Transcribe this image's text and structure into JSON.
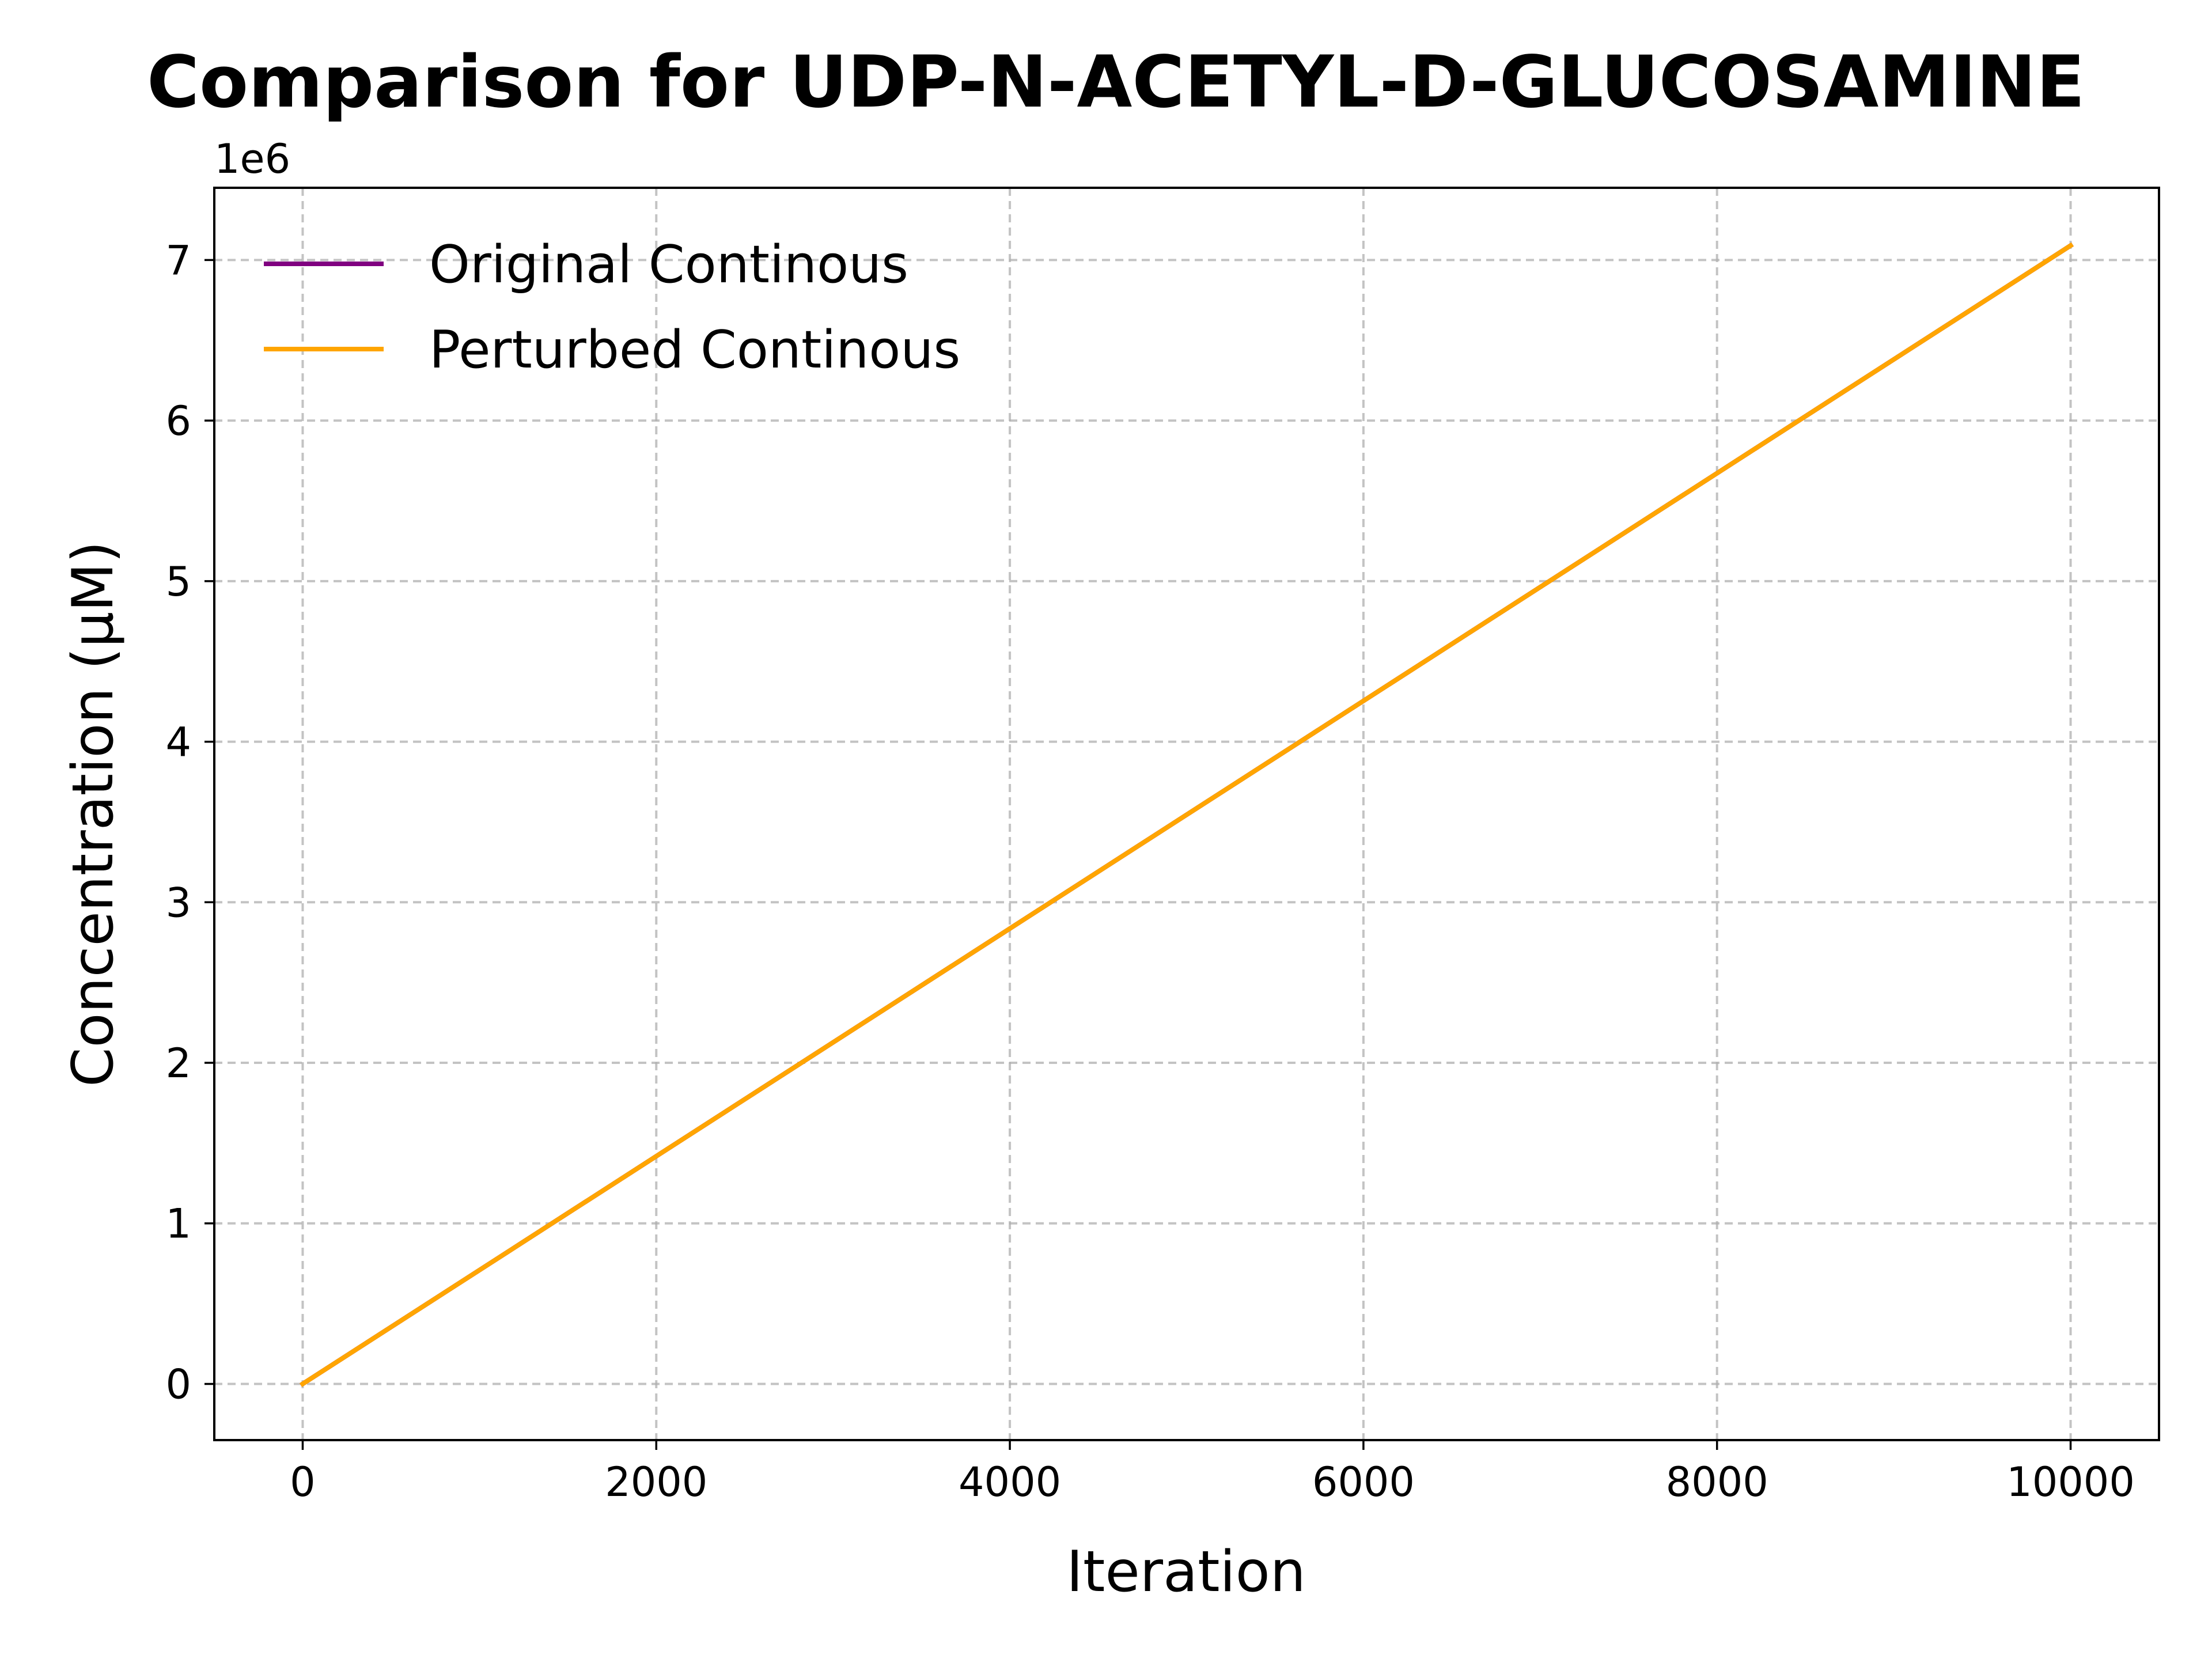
{
  "chart_data": {
    "type": "line",
    "title": "Comparison for UDP-N-ACETYL-D-GLUCOSAMINE",
    "xlabel": "Iteration",
    "ylabel": "Concentration (μM)",
    "y_offset_label": "1e6",
    "xlim": [
      -500,
      10500
    ],
    "ylim": [
      -0.35,
      7.45
    ],
    "x_ticks": [
      0,
      2000,
      4000,
      6000,
      8000,
      10000
    ],
    "x_tick_labels": [
      "0",
      "2000",
      "4000",
      "6000",
      "8000",
      "10000"
    ],
    "y_ticks": [
      0,
      1,
      2,
      3,
      4,
      5,
      6,
      7
    ],
    "y_tick_labels": [
      "0",
      "1",
      "2",
      "3",
      "4",
      "5",
      "6",
      "7"
    ],
    "grid": true,
    "legend_position": "upper-left",
    "series": [
      {
        "name": "Original Continous",
        "color": "#800080",
        "x": [
          0,
          10000
        ],
        "y": [
          0,
          7.09
        ]
      },
      {
        "name": "Perturbed Continous",
        "color": "#FFA500",
        "x": [
          0,
          10000
        ],
        "y": [
          0,
          7.09
        ]
      }
    ]
  }
}
